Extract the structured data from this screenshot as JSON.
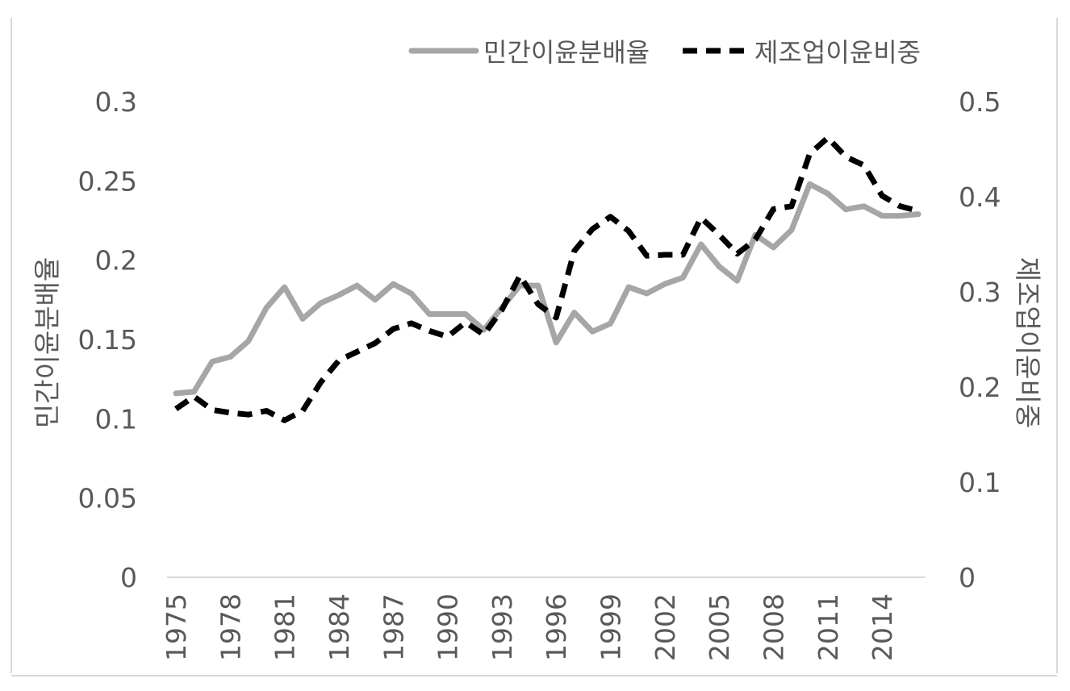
{
  "chart_data": {
    "type": "line",
    "title": "",
    "xlabel": "",
    "ylabel": "민간이윤분배율",
    "ylabel_right": "제조업이윤비중",
    "ylim": [
      0,
      0.3
    ],
    "ylim_right": [
      0,
      0.5
    ],
    "yticks": [
      "0",
      "0.05",
      "0.1",
      "0.15",
      "0.2",
      "0.25",
      "0.3"
    ],
    "yticks_right": [
      "0",
      "0.1",
      "0.2",
      "0.3",
      "0.4",
      "0.5"
    ],
    "xtick_labels": [
      "1975",
      "1978",
      "1981",
      "1984",
      "1987",
      "1990",
      "1993",
      "1996",
      "1999",
      "2002",
      "2005",
      "2008",
      "2011",
      "2014"
    ],
    "x": [
      1975,
      1976,
      1977,
      1978,
      1979,
      1980,
      1981,
      1982,
      1983,
      1984,
      1985,
      1986,
      1987,
      1988,
      1989,
      1990,
      1991,
      1992,
      1993,
      1994,
      1995,
      1996,
      1997,
      1998,
      1999,
      2000,
      2001,
      2002,
      2003,
      2004,
      2005,
      2006,
      2007,
      2008,
      2009,
      2010,
      2011,
      2012,
      2013,
      2014,
      2015,
      2016
    ],
    "grid": false,
    "legend_position": "top-right",
    "series": [
      {
        "name": "민간이윤분배율",
        "axis": "left",
        "style": "solid",
        "color": "#a6a6a6",
        "values": [
          0.116,
          0.117,
          0.136,
          0.139,
          0.149,
          0.17,
          0.183,
          0.163,
          0.173,
          0.178,
          0.184,
          0.175,
          0.185,
          0.179,
          0.166,
          0.166,
          0.166,
          0.156,
          0.17,
          0.184,
          0.184,
          0.148,
          0.167,
          0.155,
          0.16,
          0.183,
          0.179,
          0.185,
          0.189,
          0.21,
          0.196,
          0.187,
          0.216,
          0.208,
          0.219,
          0.248,
          0.242,
          0.232,
          0.234,
          0.228,
          0.228,
          0.229
        ]
      },
      {
        "name": "제조업이윤비중",
        "axis": "right",
        "style": "dashed",
        "color": "#000000",
        "values": [
          0.177,
          0.19,
          0.176,
          0.173,
          0.171,
          0.175,
          0.165,
          0.175,
          0.205,
          0.228,
          0.237,
          0.246,
          0.261,
          0.267,
          0.259,
          0.253,
          0.268,
          0.255,
          0.281,
          0.317,
          0.287,
          0.273,
          0.343,
          0.366,
          0.379,
          0.364,
          0.338,
          0.339,
          0.339,
          0.378,
          0.36,
          0.34,
          0.355,
          0.387,
          0.39,
          0.445,
          0.462,
          0.442,
          0.433,
          0.401,
          0.39,
          0.385
        ]
      }
    ]
  }
}
